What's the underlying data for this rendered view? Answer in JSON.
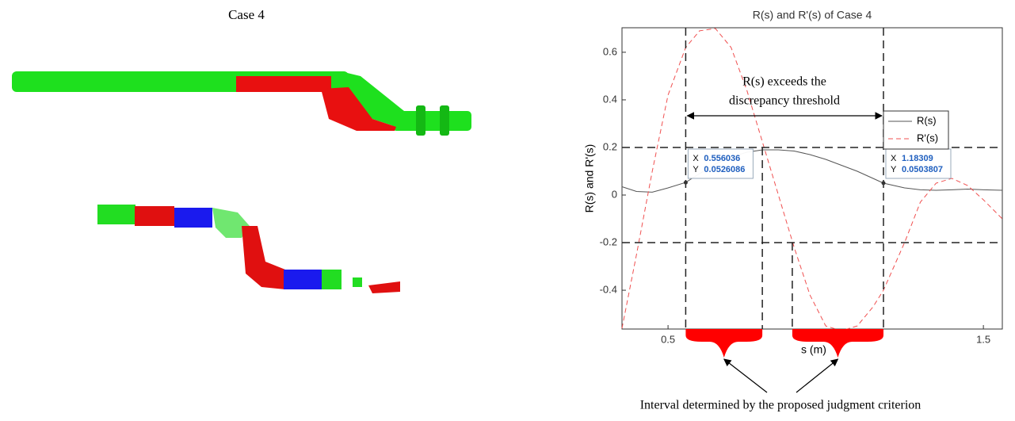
{
  "figure_title": "Case 4",
  "caption": "Interval determined by the proposed judgment criterion",
  "chart_data": {
    "type": "line",
    "title": "R(s) and R'(s) of Case 4",
    "x_label": "s (m)",
    "y_label": "R(s) and R'(s)",
    "x": [
      0.354,
      0.4,
      0.45,
      0.5,
      0.556,
      0.6,
      0.65,
      0.7,
      0.75,
      0.8,
      0.85,
      0.9,
      0.95,
      1.0,
      1.05,
      1.1,
      1.15,
      1.183,
      1.25,
      1.3,
      1.35,
      1.4,
      1.45,
      1.5,
      1.56
    ],
    "series": [
      {
        "name": "R(s)",
        "color": "#555555",
        "dash": false,
        "values": [
          0.035,
          0.015,
          0.012,
          0.03,
          0.053,
          0.09,
          0.13,
          0.16,
          0.18,
          0.19,
          0.19,
          0.185,
          0.17,
          0.15,
          0.125,
          0.1,
          0.07,
          0.05,
          0.03,
          0.022,
          0.02,
          0.022,
          0.025,
          0.022,
          0.02
        ]
      },
      {
        "name": "R'(s)",
        "color": "#f05050",
        "dash": true,
        "values": [
          -0.56,
          -0.25,
          0.1,
          0.42,
          0.62,
          0.69,
          0.7,
          0.62,
          0.44,
          0.22,
          0.0,
          -0.22,
          -0.42,
          -0.55,
          -0.57,
          -0.55,
          -0.47,
          -0.4,
          -0.2,
          -0.03,
          0.05,
          0.07,
          0.04,
          -0.02,
          -0.1
        ]
      }
    ],
    "xlim": [
      0.354,
      1.56
    ],
    "ylim": [
      -0.563,
      0.703
    ],
    "xticks": [
      0.5,
      1.5
    ],
    "yticks": [
      0.6,
      0.4,
      0.2,
      0,
      -0.2,
      -0.4
    ],
    "thresholds": [
      0.2,
      -0.2
    ],
    "boundaries": [
      0.556036,
      0.799,
      0.894,
      1.18309
    ],
    "boundary_tops": [
      null,
      0.2,
      -0.2,
      null
    ],
    "annotation_lines": [
      "R(s) exceeds the",
      "discrepancy threshold"
    ],
    "datatip_labels": [
      "X",
      "Y"
    ],
    "datatips": [
      {
        "x": 0.556036,
        "y": 0.0526086
      },
      {
        "x": 1.18309,
        "y": 0.0503807
      }
    ],
    "legend": "upper right"
  }
}
